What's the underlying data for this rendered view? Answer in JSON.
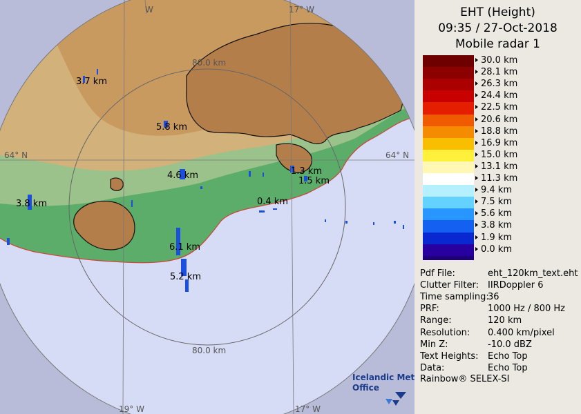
{
  "header": {
    "line1": "EHT (Height)",
    "line2": "09:35 / 27-Oct-2018",
    "line3": "Mobile radar 1"
  },
  "colorbar": {
    "labels": [
      "30.0 km",
      "28.1 km",
      "26.3 km",
      "24.4 km",
      "22.5 km",
      "20.6 km",
      "18.8 km",
      "16.9 km",
      "15.0 km",
      "13.1 km",
      "11.3 km",
      "9.4 km",
      "7.5 km",
      "5.6 km",
      "3.8 km",
      "1.9 km",
      "0.0 km"
    ],
    "colors": [
      "#6e0000",
      "#8c0000",
      "#aa0000",
      "#c80000",
      "#e61e00",
      "#f05a00",
      "#f58c00",
      "#fabe00",
      "#fff03c",
      "#fff8b4",
      "#ffffff",
      "#b4f0ff",
      "#64d2ff",
      "#2896ff",
      "#1460f0",
      "#0a28d2",
      "#2800a0",
      "#1e0078"
    ]
  },
  "info": [
    {
      "key": "Pdf File:",
      "value": "eht_120km_text.eht"
    },
    {
      "key": "Clutter Filter:",
      "value": "IIRDoppler 6"
    },
    {
      "key": "Time sampling:",
      "value": "36"
    },
    {
      "key": "PRF:",
      "value": "1000 Hz / 800 Hz"
    },
    {
      "key": "Range:",
      "value": "120 km"
    },
    {
      "key": "Resolution:",
      "value": "0.400 km/pixel"
    },
    {
      "key": "Min Z:",
      "value": "-10.0 dBZ"
    },
    {
      "key": "Text Heights:",
      "value": "Echo Top"
    },
    {
      "key": "Data:",
      "value": "Echo Top"
    }
  ],
  "footer": "Rainbow® SELEX-SI",
  "map": {
    "logo_line1": "Icelandic Met",
    "logo_line2": "Office",
    "range_ring_label": "80.0 km",
    "grid_labels": {
      "lon_19": "19° W",
      "lon_17": "17° W",
      "lat_64": "64° N",
      "lon_top_w": "W"
    },
    "echo_labels": [
      "3.7 km",
      "5.8 km",
      "4.6 km",
      "3.8 km",
      "1.3 km",
      "1.5 km",
      "0.4 km",
      "6.1 km",
      "5.2 km"
    ]
  }
}
